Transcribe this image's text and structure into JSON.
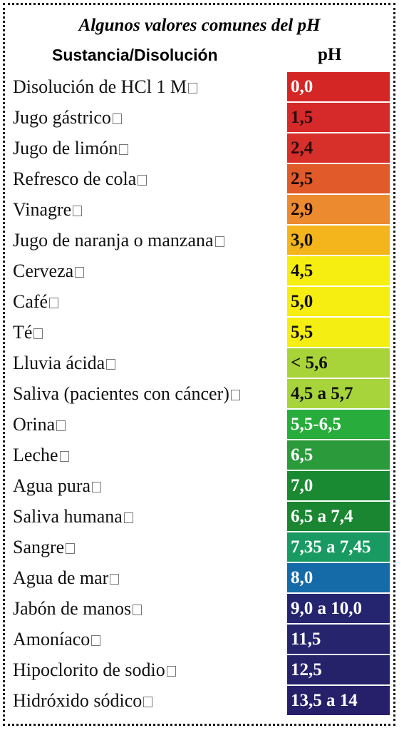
{
  "title": "Algunos valores comunes del pH",
  "headers": {
    "substance": "Sustancia/Disolución",
    "ph": "pH"
  },
  "rows": [
    {
      "name": "Disolución de HCl 1 M",
      "ph": "0,0",
      "color": "#d52626",
      "text_color": "#ffffff"
    },
    {
      "name": "Jugo gástrico",
      "ph": "1,5",
      "color": "#d62a2a",
      "text_color": "#2b0b0b"
    },
    {
      "name": "Jugo de limón",
      "ph": "2,4",
      "color": "#d72f2a",
      "text_color": "#2b0b0b"
    },
    {
      "name": "Refresco de cola",
      "ph": "2,5",
      "color": "#e05a2a",
      "text_color": "#1a0a05"
    },
    {
      "name": "Vinagre",
      "ph": "2,9",
      "color": "#ec8a30",
      "text_color": "#1a0a05"
    },
    {
      "name": "Jugo de naranja o manzana",
      "ph": "3,0",
      "color": "#f4b41c",
      "text_color": "#111111"
    },
    {
      "name": "Cerveza",
      "ph": "4,5",
      "color": "#f5ee10",
      "text_color": "#111111"
    },
    {
      "name": "Café",
      "ph": "5,0",
      "color": "#f5ee10",
      "text_color": "#111111"
    },
    {
      "name": "Té",
      "ph": "5,5",
      "color": "#f5ee12",
      "text_color": "#111111"
    },
    {
      "name": "Lluvia ácida",
      "ph": "< 5,6",
      "color": "#a8d43a",
      "text_color": "#111111"
    },
    {
      "name": "Saliva (pacientes con cáncer)",
      "ph": "4,5 a 5,7",
      "color": "#a6d43a",
      "text_color": "#111111"
    },
    {
      "name": "Orina",
      "ph": "5,5-6,5",
      "color": "#28ac3c",
      "text_color": "#ffffff"
    },
    {
      "name": "Leche",
      "ph": "6,5",
      "color": "#2a9a3a",
      "text_color": "#ffffff"
    },
    {
      "name": "Agua pura",
      "ph": "7,0",
      "color": "#1a8a32",
      "text_color": "#ffffff"
    },
    {
      "name": "Saliva humana",
      "ph": "6,5 a 7,4",
      "color": "#1a8632",
      "text_color": "#ffffff"
    },
    {
      "name": "Sangre",
      "ph": "7,35 a 7,45",
      "color": "#189a62",
      "text_color": "#ffffff"
    },
    {
      "name": "Agua de mar",
      "ph": "8,0",
      "color": "#156aa8",
      "text_color": "#ffffff"
    },
    {
      "name": "Jabón de manos",
      "ph": "9,0 a 10,0",
      "color": "#24256e",
      "text_color": "#ffffff"
    },
    {
      "name": "Amoníaco",
      "ph": "11,5",
      "color": "#26246c",
      "text_color": "#ffffff"
    },
    {
      "name": "Hipoclorito de sodio",
      "ph": "12,5",
      "color": "#26226a",
      "text_color": "#ffffff"
    },
    {
      "name": "Hidróxido sódico",
      "ph": "13,5 a 14",
      "color": "#26206a",
      "text_color": "#ffffff"
    }
  ]
}
